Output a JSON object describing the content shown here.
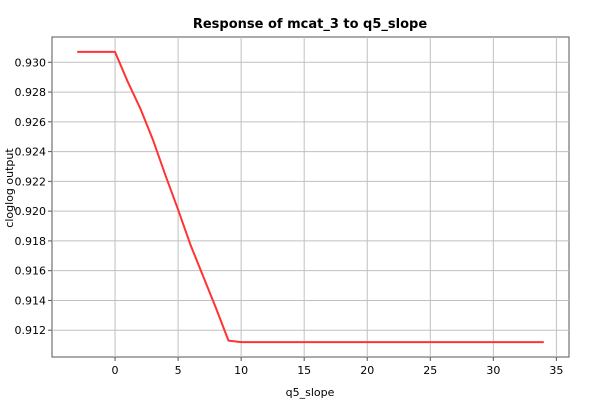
{
  "chart_data": {
    "type": "line",
    "title": "Response of mcat_3 to q5_slope",
    "xlabel": "q5_slope",
    "ylabel": "cloglog output",
    "xlim": [
      -5,
      36
    ],
    "ylim": [
      0.9102,
      0.9317
    ],
    "x_ticks": [
      0,
      5,
      10,
      15,
      20,
      25,
      30,
      35
    ],
    "x_tick_labels": [
      "0",
      "5",
      "10",
      "15",
      "20",
      "25",
      "30",
      "35"
    ],
    "y_ticks": [
      0.912,
      0.914,
      0.916,
      0.918,
      0.92,
      0.922,
      0.924,
      0.926,
      0.928,
      0.93
    ],
    "y_tick_labels": [
      "0.912",
      "0.914",
      "0.916",
      "0.918",
      "0.920",
      "0.922",
      "0.924",
      "0.926",
      "0.928",
      "0.930"
    ],
    "grid": true,
    "series": [
      {
        "color": "#ff3333",
        "x": [
          -3,
          0,
          1,
          2,
          3,
          4,
          5,
          6,
          7,
          8,
          9,
          10,
          34
        ],
        "y": [
          0.9307,
          0.9307,
          0.9287,
          0.9269,
          0.9248,
          0.9224,
          0.9201,
          0.9177,
          0.9156,
          0.9135,
          0.9113,
          0.9112,
          0.9112
        ]
      }
    ]
  }
}
